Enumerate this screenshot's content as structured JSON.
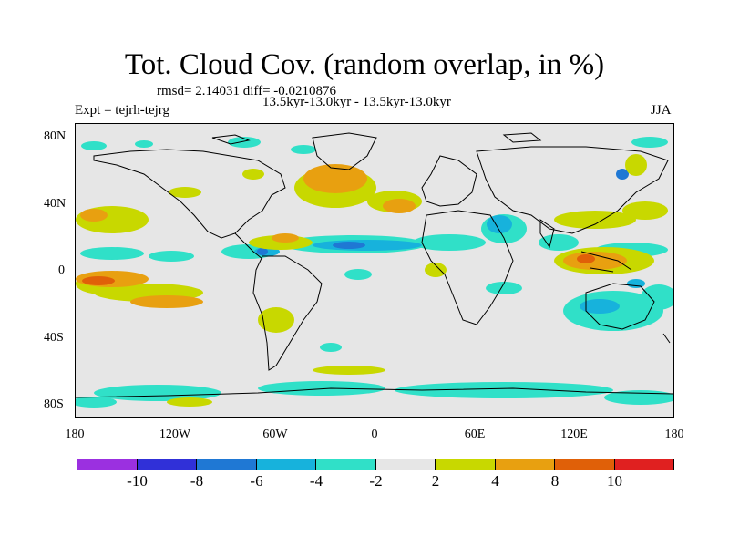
{
  "title": "Tot. Cloud Cov. (random overlap, in %)",
  "stats": "rmsd= 2.14031 diff= -0.0210876",
  "experiment": "Expt = tejrh-tejrg",
  "period": "13.5kyr-13.0kyr - 13.5kyr-13.0kyr",
  "season": "JJA",
  "y_ticks": [
    "80N",
    "40N",
    "0",
    "40S",
    "80S"
  ],
  "x_ticks": [
    "180",
    "120W",
    "60W",
    "0",
    "60E",
    "120E",
    "180"
  ],
  "colorbar": {
    "colors": [
      "#9b30e0",
      "#3030d8",
      "#1f78d4",
      "#17b2dc",
      "#30e0c8",
      "#e6e6e6",
      "#c8d800",
      "#e8a010",
      "#e06008",
      "#e02020"
    ],
    "labels": [
      "-10",
      "-8",
      "-6",
      "-4",
      "-2",
      "2",
      "4",
      "8",
      "10"
    ]
  },
  "map_data": {
    "background": "#e6e6e6",
    "lon_range": [
      -180,
      180
    ],
    "lat_range": [
      -90,
      90
    ]
  }
}
